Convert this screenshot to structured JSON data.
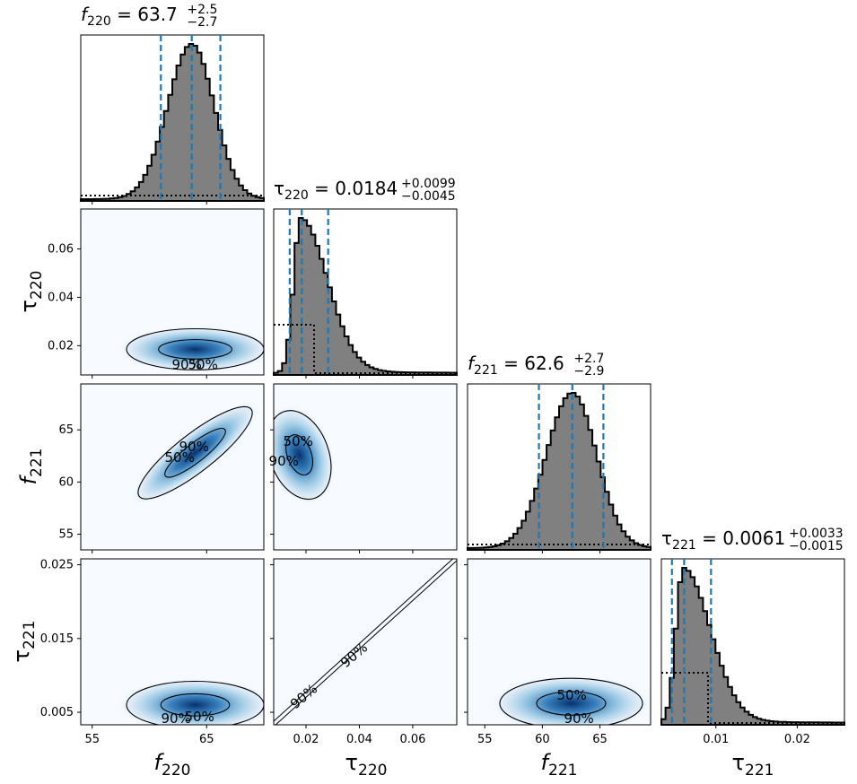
{
  "chart_data": {
    "type": "corner",
    "params": [
      {
        "key": "f220",
        "sym": "f",
        "sub": "220",
        "median": "63.7",
        "plus": "+2.5",
        "minus": "−2.7",
        "lo": 54,
        "hi": 70,
        "ticks": [
          55,
          65
        ],
        "qlo": 61.0,
        "qmed": 63.7,
        "qhi": 66.2,
        "sd": 1.6
      },
      {
        "key": "tau220",
        "sym": "τ",
        "sub": "220",
        "median": "0.0184",
        "plus": "+0.0099",
        "minus": "−0.0045",
        "lo": 0.0079,
        "hi": 0.0765,
        "ticks": [
          0.02,
          0.04,
          0.06
        ],
        "qlo": 0.0139,
        "qmed": 0.0184,
        "qhi": 0.0283,
        "sd": 0.004
      },
      {
        "key": "f221",
        "sym": "f",
        "sub": "221",
        "median": "62.6",
        "plus": "+2.7",
        "minus": "−2.9",
        "lo": 53.5,
        "hi": 69.4,
        "ticks": [
          55,
          60,
          65
        ],
        "qlo": 59.7,
        "qmed": 62.6,
        "qhi": 65.3,
        "sd": 1.7
      },
      {
        "key": "tau221",
        "sym": "τ",
        "sub": "221",
        "median": "0.0061",
        "plus": "+0.0033",
        "minus": "−0.0015",
        "lo": 0.0033,
        "hi": 0.0258,
        "ticks": [
          0.01,
          0.02
        ],
        "qlo": 0.0046,
        "qmed": 0.0061,
        "qhi": 0.0094,
        "sd": 0.0013
      }
    ],
    "tick_labels": {
      "f220": [
        "55",
        "65"
      ],
      "tau220": [
        "0.02",
        "0.04",
        "0.06"
      ],
      "f221_x": [
        "55",
        "60",
        "65"
      ],
      "f221_y": [
        "55",
        "60",
        "65"
      ],
      "tau221_x": [
        "0.01",
        "0.02"
      ],
      "tau221_y": [
        "0.005",
        "0.015",
        "0.025"
      ],
      "tau220_y": [
        "0.02",
        "0.04",
        "0.06"
      ]
    },
    "contour_levels": [
      "50%",
      "90%"
    ],
    "colors": {
      "hist_fill": "#808080",
      "quantile_line": "#1f77b4",
      "density": "#08306b",
      "density_bg": "#f7fbff"
    }
  }
}
